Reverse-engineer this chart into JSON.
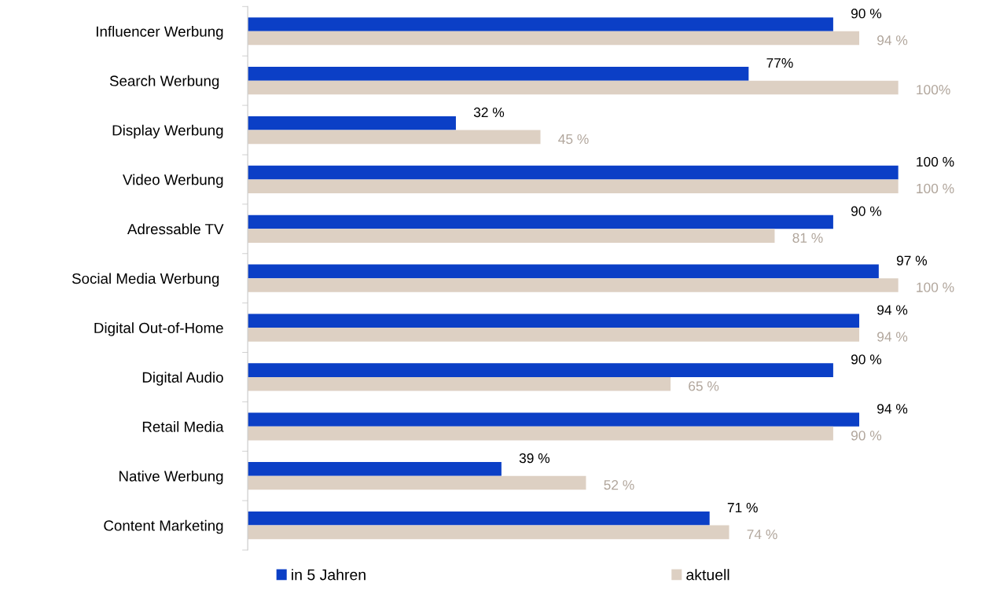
{
  "chart_data": {
    "type": "bar",
    "orientation": "horizontal",
    "categories": [
      "Influencer Werbung",
      "Search Werbung ",
      "Display Werbung",
      "Video Werbung",
      "Adressable TV",
      "Social Media Werbung ",
      "Digital Out-of-Home",
      "Digital Audio",
      "Retail Media",
      "Native Werbung",
      "Content Marketing"
    ],
    "series": [
      {
        "name": "in 5 Jahren",
        "color": "#0b3fc6",
        "values": [
          90,
          77,
          32,
          100,
          90,
          97,
          94,
          90,
          94,
          39,
          71
        ],
        "value_labels": [
          "90 %",
          "77%",
          "32 %",
          "100 %",
          "90 %",
          "97 %",
          "94 %",
          "90 %",
          "94 %",
          "39 %",
          "71 %"
        ]
      },
      {
        "name": "aktuell",
        "color": "#ddd0c3",
        "values": [
          94,
          100,
          45,
          100,
          81,
          100,
          94,
          65,
          90,
          52,
          74
        ],
        "value_labels": [
          "94 %",
          "100%",
          "45 %",
          "100 %",
          "81 %",
          "100 %",
          "94 %",
          "65 %",
          "90 %",
          "52 %",
          "74 %"
        ]
      }
    ],
    "legend": "bottom",
    "grid": false
  }
}
